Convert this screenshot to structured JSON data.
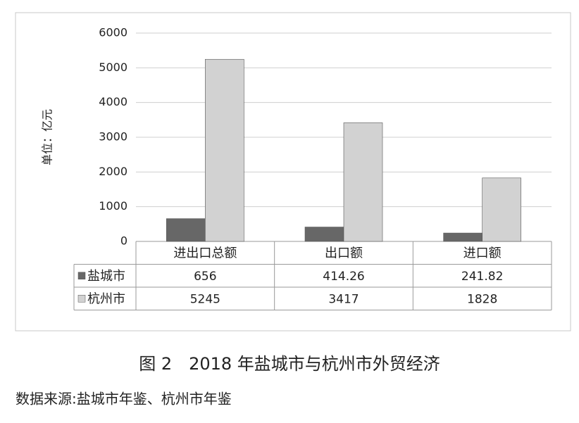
{
  "chart_data": {
    "type": "bar",
    "y_label": "单位：亿元",
    "categories": [
      "进出口总额",
      "出口额",
      "进口额"
    ],
    "series": [
      {
        "name": "盐城市",
        "color": "#676767",
        "values": [
          656,
          414.26,
          241.82
        ]
      },
      {
        "name": "杭州市",
        "color": "#d2d2d2",
        "values": [
          5245,
          3417,
          1828
        ]
      }
    ],
    "ylim": [
      0,
      6000
    ],
    "yticks": [
      0,
      1000,
      2000,
      3000,
      4000,
      5000,
      6000
    ],
    "grid": true
  },
  "caption": "图 2　2018 年盐城市与杭州市外贸经济",
  "source": "数据来源:盐城市年鉴、杭州市年鉴"
}
